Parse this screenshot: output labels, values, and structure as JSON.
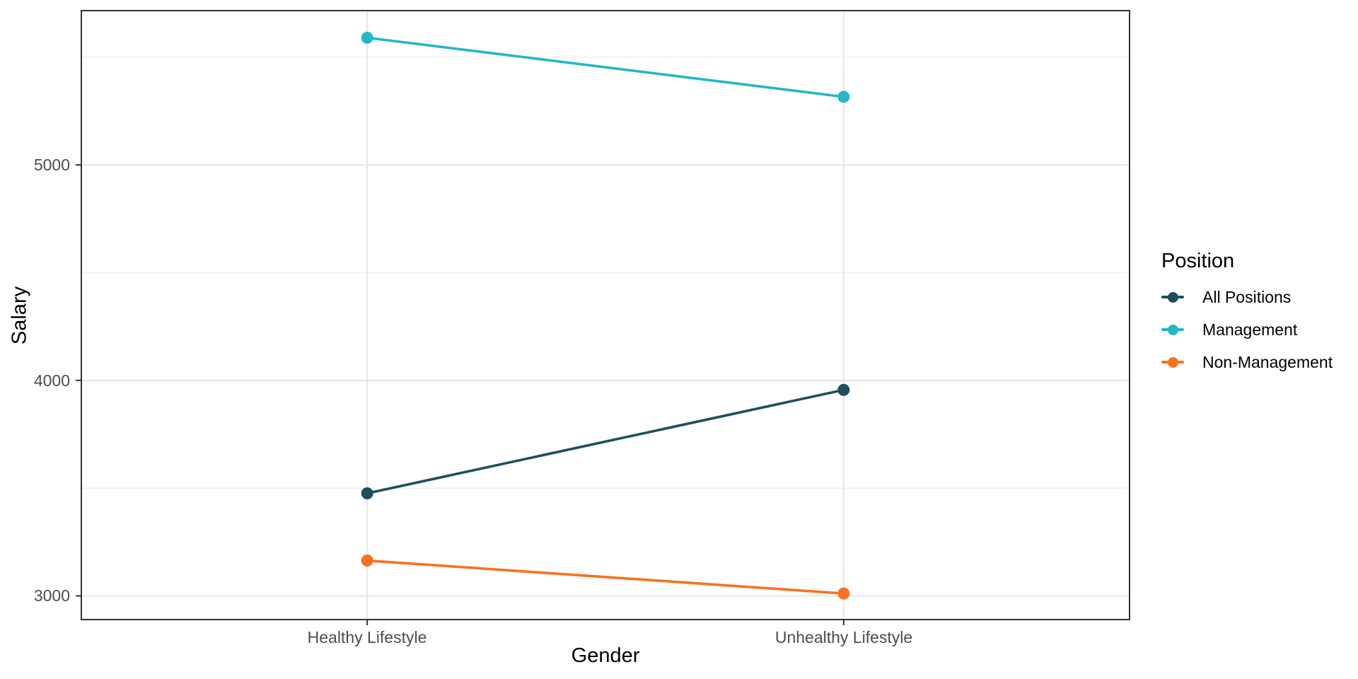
{
  "figure": {
    "background": "#ffffff",
    "panel_border_color": "#333333",
    "tick_color": "#333333",
    "tick_label_color": "#4d4d4d",
    "grid_major_color": "#e4e4e4",
    "grid_minor_color": "#eeeeee"
  },
  "chart_data": {
    "type": "line",
    "title": "",
    "xlabel": "Gender",
    "ylabel": "Salary",
    "categories": [
      "Healthy Lifestyle",
      "Unhealthy Lifestyle"
    ],
    "series": [
      {
        "name": "All Positions",
        "color": "#1d4f5f",
        "values": [
          3476,
          3956
        ]
      },
      {
        "name": "Management",
        "color": "#25b6c9",
        "values": [
          5590,
          5316
        ]
      },
      {
        "name": "Non-Management",
        "color": "#f8721d",
        "values": [
          3164,
          3011
        ]
      }
    ],
    "yticks": [
      3000,
      4000,
      5000
    ],
    "ytick_labels": [
      "3000",
      "4000",
      "5000"
    ],
    "yticks_minor": [
      3500,
      4500,
      5500
    ],
    "ylim": [
      2890,
      5716
    ],
    "grid": true,
    "legend": {
      "title": "Position",
      "position": "right",
      "items": [
        "All Positions",
        "Management",
        "Non-Management"
      ]
    }
  }
}
